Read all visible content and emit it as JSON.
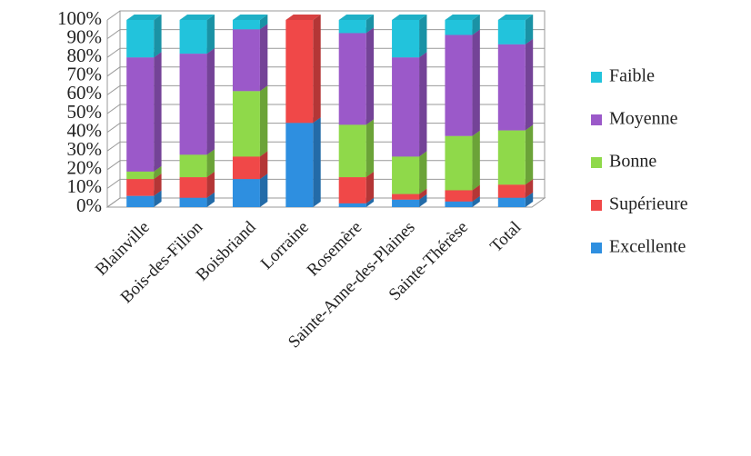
{
  "chart_data": {
    "type": "stacked_bar_3d",
    "categories": [
      "Blainville",
      "Bois-des-Filion",
      "Boisbriand",
      "Lorraine",
      "Rosemère",
      "Sainte-Anne-des-Plaines",
      "Sainte-Thérèse",
      "Total"
    ],
    "series": [
      {
        "name": "Excellente",
        "color": "#2e8fe0",
        "values": [
          6,
          5,
          15,
          45,
          2,
          4,
          3,
          5
        ]
      },
      {
        "name": "Supérieure",
        "color": "#f04848",
        "values": [
          9,
          11,
          12,
          55,
          14,
          3,
          6,
          7
        ]
      },
      {
        "name": "Bonne",
        "color": "#8fd94a",
        "values": [
          4,
          12,
          35,
          0,
          28,
          20,
          29,
          29
        ]
      },
      {
        "name": "Moyenne",
        "color": "#9b59c9",
        "values": [
          61,
          54,
          33,
          0,
          49,
          53,
          54,
          46
        ]
      },
      {
        "name": "Faible",
        "color": "#22c3dc",
        "values": [
          20,
          18,
          5,
          0,
          7,
          20,
          8,
          13
        ]
      }
    ],
    "ylim": [
      0,
      100
    ],
    "yticks": [
      {
        "value": 0,
        "label": "0%"
      },
      {
        "value": 10,
        "label": "10%"
      },
      {
        "value": 20,
        "label": "20%"
      },
      {
        "value": 30,
        "label": "30%"
      },
      {
        "value": 40,
        "label": "40%"
      },
      {
        "value": 50,
        "label": "50%"
      },
      {
        "value": 60,
        "label": "60%"
      },
      {
        "value": 70,
        "label": "70%"
      },
      {
        "value": 80,
        "label": "80%"
      },
      {
        "value": 90,
        "label": "90%"
      },
      {
        "value": 100,
        "label": "100%"
      }
    ],
    "grid": true
  }
}
